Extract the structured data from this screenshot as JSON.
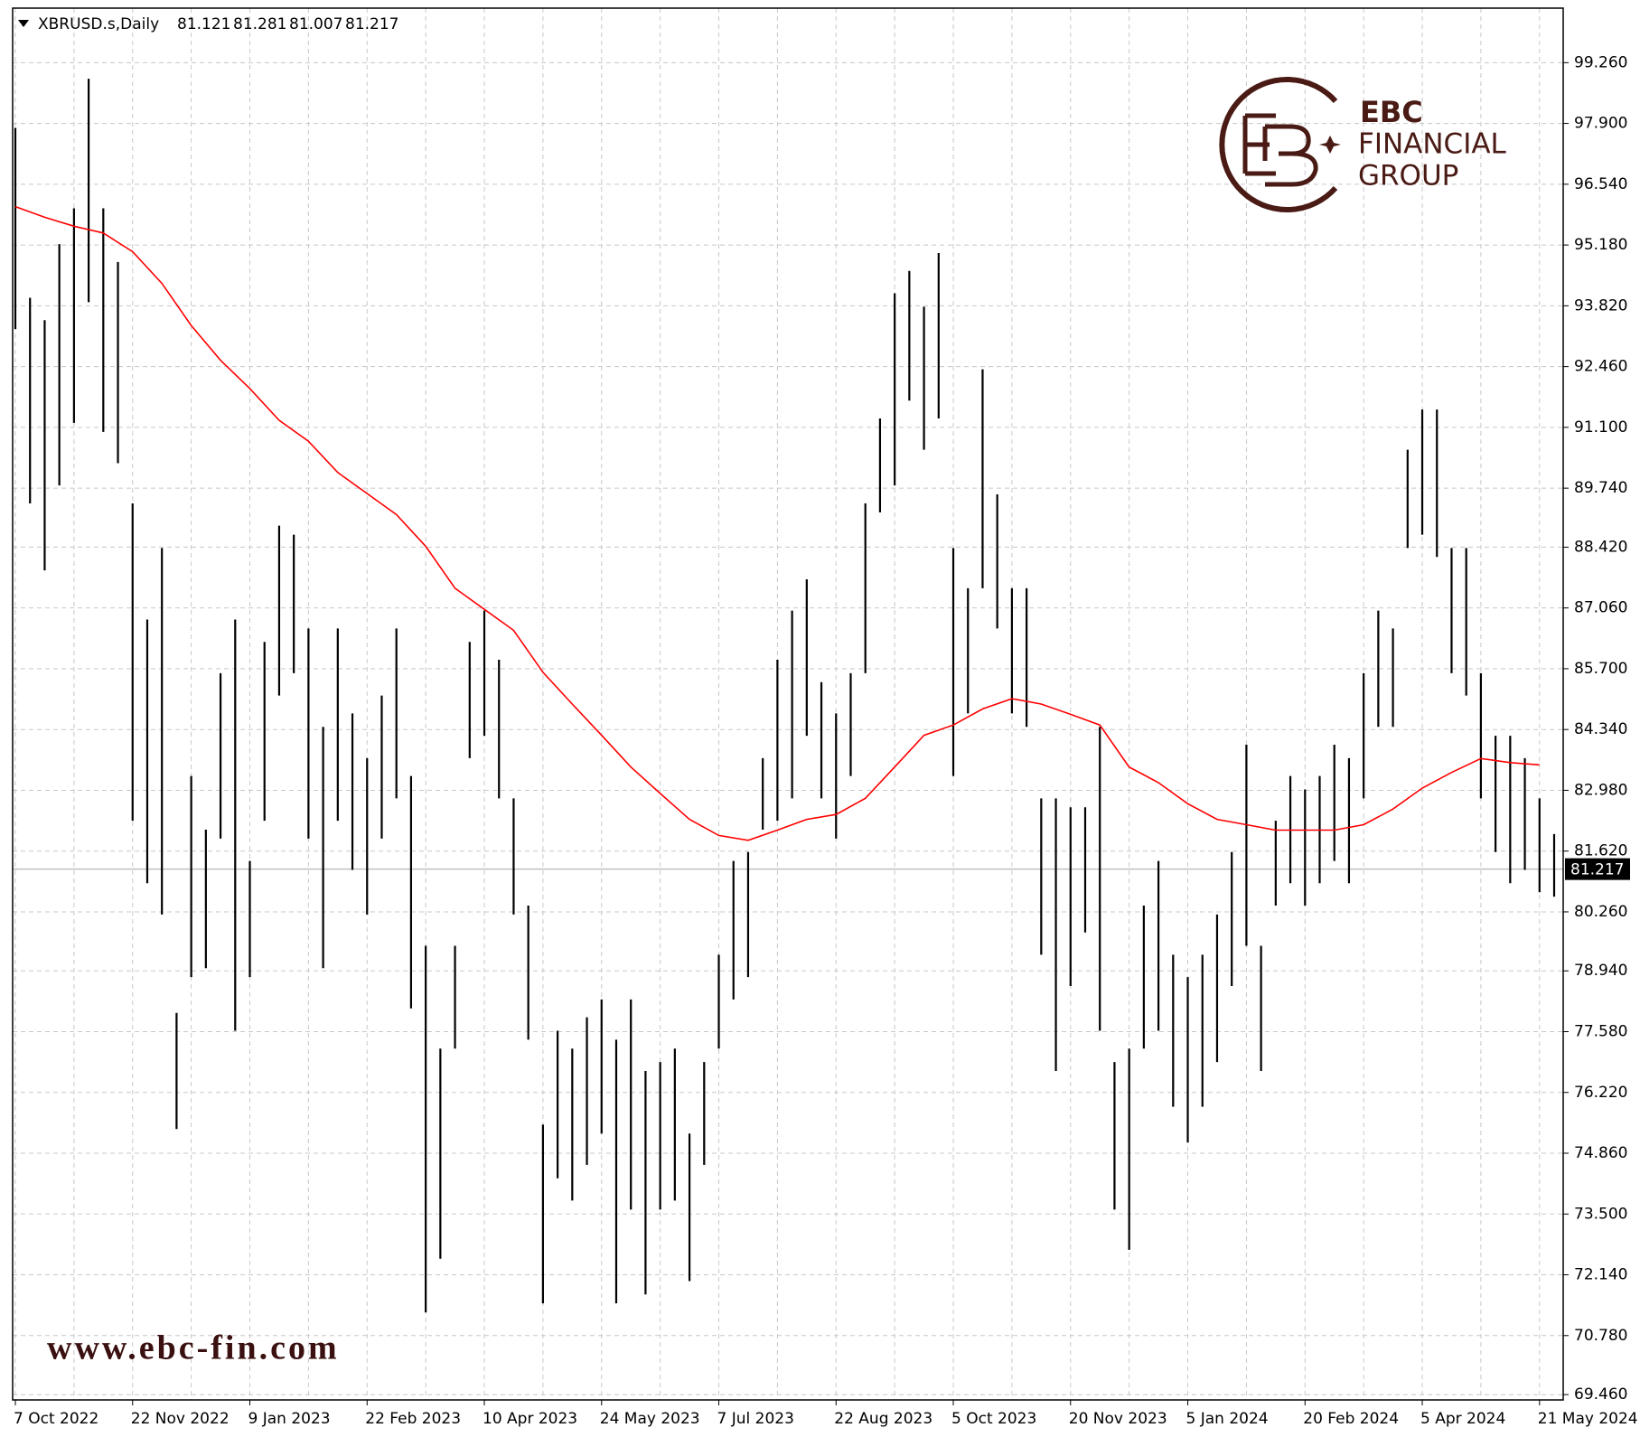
{
  "chart_data": {
    "type": "ohlc",
    "title": "XBRUSD.s,Daily",
    "header_values": [
      81.121,
      81.281,
      81.007,
      81.217
    ],
    "current_price": 81.217,
    "bar_color": "#000000",
    "price_line_color": "#c0c0c0",
    "grid": true,
    "categories": [
      "7 Oct 2022",
      null,
      null,
      null,
      null,
      null,
      null,
      null,
      "22 Nov 2022",
      null,
      null,
      null,
      null,
      null,
      null,
      null,
      "9 Jan 2023",
      null,
      null,
      null,
      null,
      null,
      null,
      null,
      "22 Feb 2023",
      null,
      null,
      null,
      null,
      null,
      null,
      null,
      "10 Apr 2023",
      null,
      null,
      null,
      null,
      null,
      null,
      null,
      "24 May 2023",
      null,
      null,
      null,
      null,
      null,
      null,
      null,
      "7 Jul 2023",
      null,
      null,
      null,
      null,
      null,
      null,
      null,
      "22 Aug 2023",
      null,
      null,
      null,
      null,
      null,
      null,
      null,
      "5 Oct 2023",
      null,
      null,
      null,
      null,
      null,
      null,
      null,
      "20 Nov 2023",
      null,
      null,
      null,
      null,
      null,
      null,
      null,
      "5 Jan 2024",
      null,
      null,
      null,
      null,
      null,
      null,
      null,
      "20 Feb 2024",
      null,
      null,
      null,
      null,
      null,
      null,
      null,
      "5 Apr 2024",
      null,
      null,
      null,
      null,
      null,
      null,
      null,
      "21 May 2024",
      null
    ],
    "high": [
      97.8,
      94.0,
      93.5,
      95.2,
      96.0,
      98.9,
      96.0,
      94.8,
      89.4,
      86.8,
      88.4,
      78.0,
      83.3,
      82.1,
      85.6,
      86.8,
      81.4,
      86.3,
      88.9,
      88.7,
      86.6,
      84.4,
      86.6,
      84.7,
      83.7,
      85.1,
      86.6,
      83.3,
      79.5,
      77.2,
      79.5,
      86.3,
      87.0,
      85.9,
      82.8,
      80.4,
      75.5,
      77.6,
      77.2,
      77.9,
      78.3,
      77.4,
      78.3,
      76.7,
      76.9,
      77.2,
      75.3,
      76.9,
      79.3,
      81.4,
      81.6,
      83.7,
      85.9,
      87.0,
      87.7,
      85.4,
      84.7,
      85.6,
      89.4,
      91.3,
      94.1,
      94.6,
      93.8,
      95.0,
      88.4,
      87.5,
      92.4,
      89.6,
      87.5,
      87.5,
      82.8,
      82.8,
      82.6,
      82.6,
      84.4,
      76.9,
      77.2,
      80.4,
      81.4,
      79.3,
      78.8,
      79.3,
      80.2,
      81.6,
      84.0,
      79.5,
      82.3,
      83.3,
      83.0,
      83.3,
      84.0,
      83.7,
      85.6,
      87.0,
      86.6,
      90.6,
      91.5,
      91.5,
      88.4,
      88.4,
      85.6,
      84.2,
      84.2,
      83.7,
      82.8,
      82.0
    ],
    "low": [
      93.3,
      89.4,
      87.9,
      89.8,
      91.2,
      93.9,
      91.0,
      90.3,
      82.3,
      80.9,
      80.2,
      75.4,
      78.8,
      79.0,
      81.9,
      77.6,
      78.8,
      82.3,
      85.1,
      85.6,
      81.9,
      79.0,
      82.3,
      81.2,
      80.2,
      81.9,
      82.8,
      78.1,
      71.3,
      72.5,
      77.2,
      83.7,
      84.2,
      82.8,
      80.2,
      77.4,
      71.5,
      74.3,
      73.8,
      74.6,
      75.3,
      71.5,
      73.6,
      71.7,
      73.6,
      73.8,
      72.0,
      74.6,
      77.2,
      78.3,
      78.8,
      82.1,
      82.3,
      82.8,
      84.2,
      82.8,
      81.9,
      83.3,
      85.6,
      89.2,
      89.8,
      91.7,
      90.6,
      91.3,
      83.3,
      84.7,
      87.5,
      86.6,
      84.7,
      84.4,
      79.3,
      76.7,
      78.6,
      79.8,
      77.6,
      73.6,
      72.7,
      77.2,
      77.6,
      75.9,
      75.1,
      75.9,
      76.9,
      78.6,
      79.5,
      76.7,
      80.4,
      80.9,
      80.4,
      80.9,
      81.4,
      80.9,
      82.8,
      84.4,
      84.4,
      88.4,
      88.7,
      88.2,
      85.6,
      85.1,
      82.8,
      81.6,
      80.9,
      81.2,
      80.7,
      80.6
    ],
    "moving_average": {
      "color": "#ff0000",
      "x": [
        0,
        2,
        4,
        6,
        8,
        10,
        12,
        14,
        16,
        18,
        20,
        22,
        24,
        26,
        28,
        30,
        32,
        34,
        36,
        38,
        40,
        42,
        44,
        46,
        48,
        50,
        52,
        54,
        56,
        58,
        60,
        62,
        64,
        66,
        68,
        70,
        72,
        74,
        76,
        78,
        80,
        82,
        84,
        86,
        88,
        90,
        92,
        94,
        96,
        98,
        100,
        102,
        104
      ],
      "values": [
        96.04,
        95.8,
        95.6,
        95.45,
        95.03,
        94.32,
        93.38,
        92.6,
        91.97,
        91.26,
        90.79,
        90.09,
        89.62,
        89.15,
        88.44,
        87.5,
        87.03,
        86.56,
        85.62,
        84.91,
        84.21,
        83.5,
        82.91,
        82.33,
        81.97,
        81.86,
        82.09,
        82.33,
        82.44,
        82.8,
        83.5,
        84.21,
        84.44,
        84.8,
        85.03,
        84.91,
        84.68,
        84.44,
        83.5,
        83.15,
        82.68,
        82.33,
        82.21,
        82.09,
        82.09,
        82.09,
        82.21,
        82.56,
        83.03,
        83.38,
        83.69,
        83.6,
        83.55
      ]
    },
    "ylim": [
      69.34,
      100.48
    ],
    "yticks": [
      {
        "value": 69.46,
        "label": "69.460"
      },
      {
        "value": 70.78,
        "label": "70.780"
      },
      {
        "value": 72.14,
        "label": "72.140"
      },
      {
        "value": 73.5,
        "label": "73.500"
      },
      {
        "value": 74.86,
        "label": "74.860"
      },
      {
        "value": 76.22,
        "label": "76.220"
      },
      {
        "value": 77.58,
        "label": "77.580"
      },
      {
        "value": 78.94,
        "label": "78.940"
      },
      {
        "value": 80.26,
        "label": "80.260"
      },
      {
        "value": 81.62,
        "label": "81.620"
      },
      {
        "value": 82.98,
        "label": "82.980"
      },
      {
        "value": 84.34,
        "label": "84.340"
      },
      {
        "value": 85.7,
        "label": "85.700"
      },
      {
        "value": 87.06,
        "label": "87.060"
      },
      {
        "value": 88.42,
        "label": "88.420"
      },
      {
        "value": 89.74,
        "label": "89.740"
      },
      {
        "value": 91.1,
        "label": "91.100"
      },
      {
        "value": 92.46,
        "label": "92.460"
      },
      {
        "value": 93.82,
        "label": "93.820"
      },
      {
        "value": 95.18,
        "label": "95.180"
      },
      {
        "value": 96.54,
        "label": "96.540"
      },
      {
        "value": 97.9,
        "label": "97.900"
      },
      {
        "value": 99.26,
        "label": "99.260"
      }
    ]
  },
  "logo": {
    "title": "EBC",
    "line1": "FINANCIAL",
    "line2": "GROUP"
  },
  "watermark": "www.ebc-fin.com"
}
